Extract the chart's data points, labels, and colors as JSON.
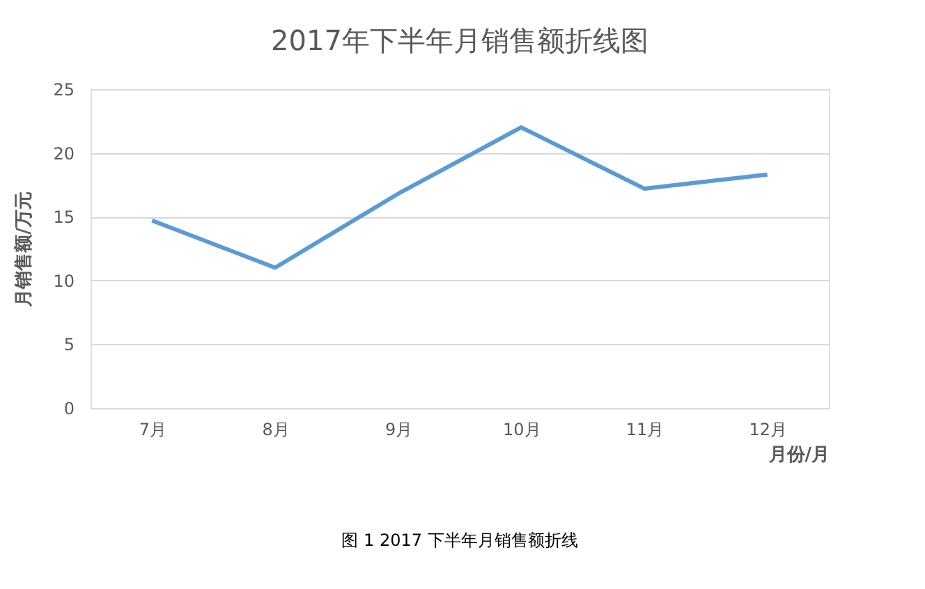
{
  "chart_data": {
    "type": "line",
    "title": "2017年下半年月销售额折线图",
    "xlabel": "月份/月",
    "ylabel": "月销售额/万元",
    "categories": [
      "7月",
      "8月",
      "9月",
      "10月",
      "11月",
      "12月"
    ],
    "series": [
      {
        "color": "#5b9bd5",
        "values": [
          14.7,
          11.0,
          16.8,
          22.0,
          17.2,
          18.3
        ]
      }
    ],
    "ylim": [
      0,
      25
    ],
    "yticks": [
      0,
      5,
      10,
      15,
      20,
      25
    ],
    "grid": "y",
    "legend": false,
    "marker": "none",
    "line_style": "solid",
    "annotations": [
      "图 1  2017 下半年月销售额折线"
    ]
  }
}
